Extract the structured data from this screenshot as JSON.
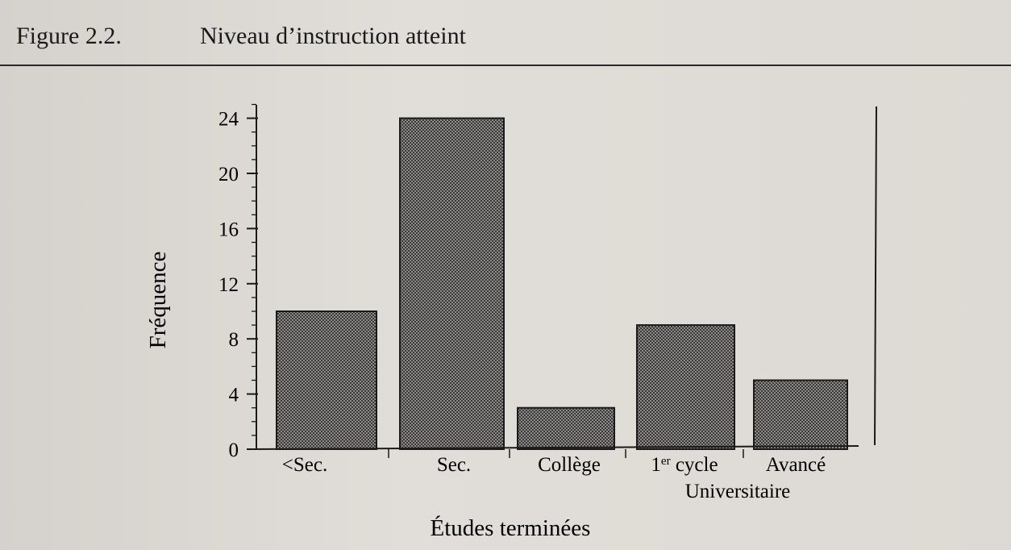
{
  "figure": {
    "number": "Figure 2.2.",
    "title": "Niveau d’instruction atteint"
  },
  "colors": {
    "paper": "#dcd8d3",
    "ink": "#1b1a1a",
    "bar_fill": "#6d6a68"
  },
  "chart_data": {
    "type": "bar",
    "title": "Niveau d’instruction atteint",
    "xlabel": "Études terminées",
    "ylabel": "Fréquence",
    "categories": [
      "<Sec.",
      "Sec.",
      "Collège",
      "1er cycle",
      "Avancé"
    ],
    "values": [
      10,
      24,
      3,
      9,
      5
    ],
    "category_group_label": "Universitaire",
    "ylim": [
      0,
      25
    ],
    "yticks": [
      0,
      4,
      8,
      12,
      16,
      20,
      24
    ],
    "grid": false,
    "bar_pattern": "crosshatch"
  }
}
